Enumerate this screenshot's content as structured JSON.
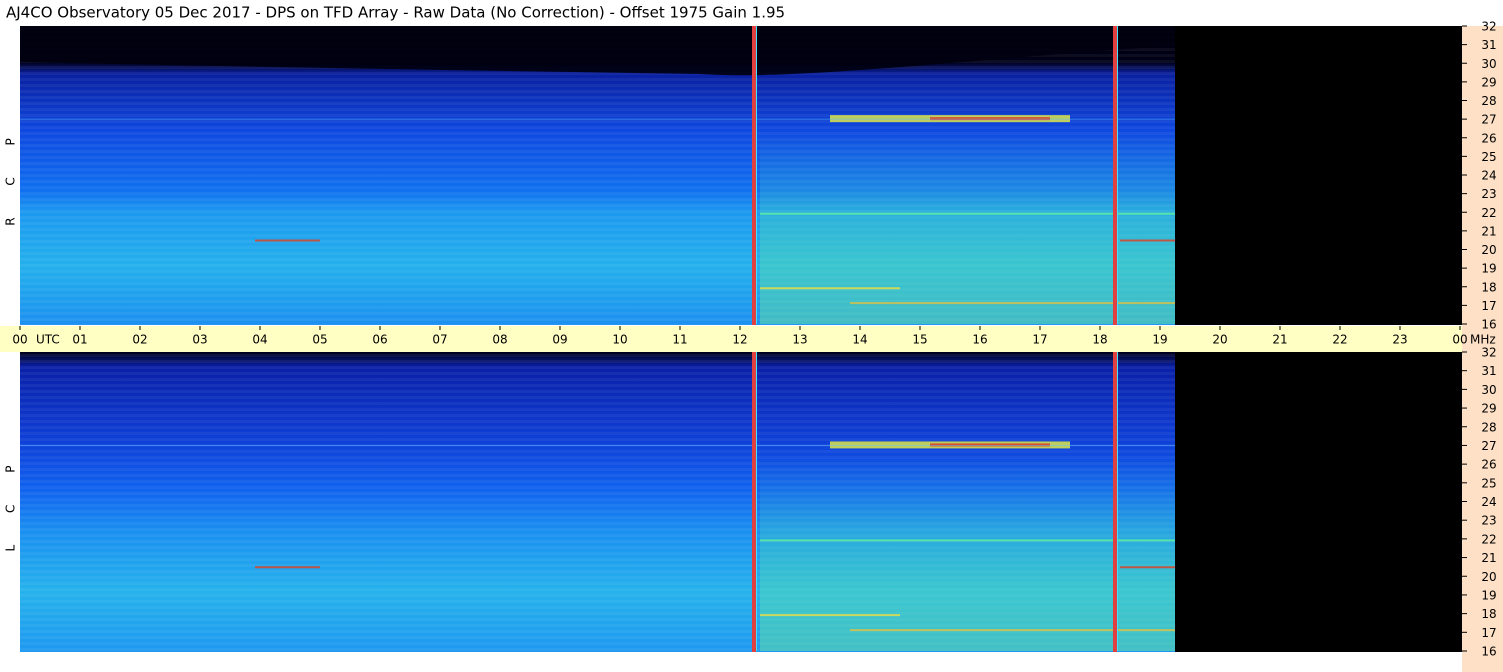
{
  "chart_data": {
    "type": "spectrogram",
    "title": "AJ4CO Observatory  05 Dec 2017  -  DPS on TFD Array  -  Raw Data (No Correction)  -  Offset 1975  Gain 1.95",
    "xlabel": "UTC",
    "ylabel": "MHz",
    "panels": [
      {
        "label": "R C P"
      },
      {
        "label": "L C P"
      }
    ],
    "xlim": [
      0,
      24
    ],
    "xticks": [
      {
        "value": 0,
        "label": "00"
      },
      {
        "value": 1,
        "label": "01"
      },
      {
        "value": 2,
        "label": "02"
      },
      {
        "value": 3,
        "label": "03"
      },
      {
        "value": 4,
        "label": "04"
      },
      {
        "value": 5,
        "label": "05"
      },
      {
        "value": 6,
        "label": "06"
      },
      {
        "value": 7,
        "label": "07"
      },
      {
        "value": 8,
        "label": "08"
      },
      {
        "value": 9,
        "label": "09"
      },
      10,
      11,
      12,
      13,
      14,
      15,
      16,
      17,
      18,
      19,
      20,
      21,
      22,
      23,
      {
        "value": 24,
        "label": "00"
      }
    ],
    "ylim": [
      16,
      32
    ],
    "yticks": [
      16,
      17,
      18,
      19,
      20,
      21,
      22,
      23,
      24,
      25,
      26,
      27,
      28,
      29,
      30,
      31,
      32
    ]
  }
}
